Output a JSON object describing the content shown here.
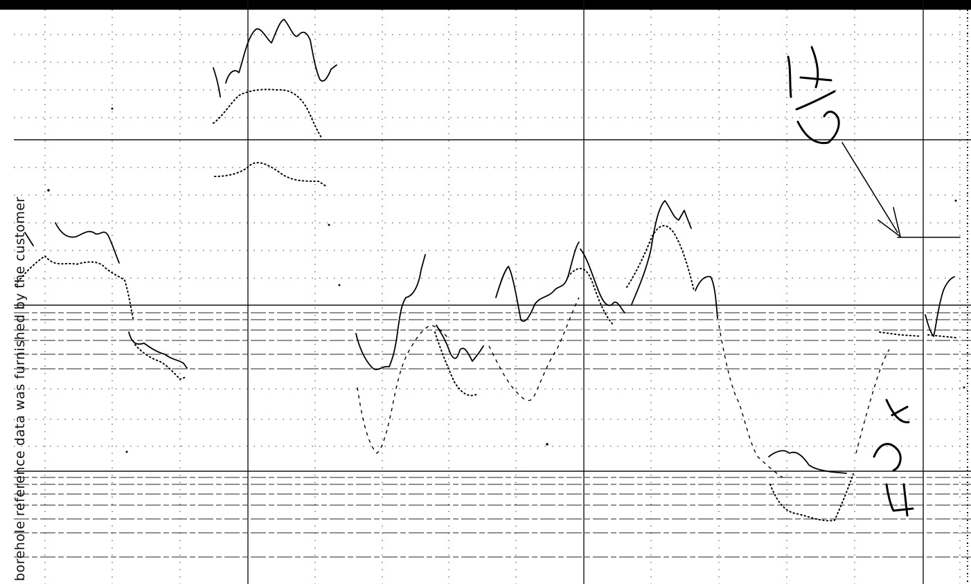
{
  "side_note": "borehole reference data was furnished by the customer",
  "handwriting": {
    "upper_mark": "SFC",
    "lower_mark": "LH"
  }
}
